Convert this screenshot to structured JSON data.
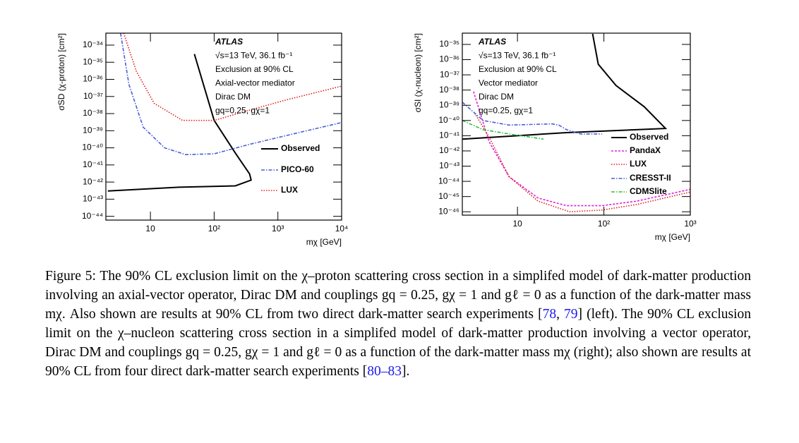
{
  "chart_data": [
    {
      "type": "line",
      "log_x": true,
      "log_y": true,
      "annotations": [
        "ATLAS",
        "√s=13 TeV, 36.1 fb⁻¹",
        "Exclusion at 90% CL",
        "Axial-vector mediator",
        "Dirac DM",
        "gq=0.25, gχ=1"
      ],
      "xlabel": "mχ [GeV]",
      "ylabel": "σSD (χ-proton) [cm²]",
      "xlim": [
        2,
        10000
      ],
      "ylim": [
        6e-45,
        5e-34
      ],
      "xticks": [
        10,
        {
          "value": 100,
          "label": "10²"
        },
        {
          "value": 1000,
          "label": "10³"
        },
        {
          "value": 10000,
          "label": "10⁴"
        }
      ],
      "yticks": [
        {
          "value": 1e-34,
          "label": "10⁻³⁴"
        },
        {
          "value": 1e-35,
          "label": "10⁻³⁵"
        },
        {
          "value": 1e-36,
          "label": "10⁻³⁶"
        },
        {
          "value": 1e-37,
          "label": "10⁻³⁷"
        },
        {
          "value": 1e-38,
          "label": "10⁻³⁸"
        },
        {
          "value": 1e-39,
          "label": "10⁻³⁹"
        },
        {
          "value": 1e-40,
          "label": "10⁻⁴⁰"
        },
        {
          "value": 1e-41,
          "label": "10⁻⁴¹"
        },
        {
          "value": 1e-42,
          "label": "10⁻⁴²"
        },
        {
          "value": 1e-43,
          "label": "10⁻⁴³"
        },
        {
          "value": 1e-44,
          "label": "10⁻⁴⁴"
        }
      ],
      "legend": "center right",
      "series": [
        {
          "name": "Observed",
          "color": "#000000",
          "linestyle": "solid",
          "x": [
            49,
            100,
            215,
            360,
            380,
            215,
            28,
            2.15
          ],
          "values": [
            3e-35,
            4e-39,
            5e-41,
            3e-42,
            1.3e-42,
            6e-43,
            5e-43,
            3e-43
          ]
        },
        {
          "name": "PICO-60",
          "color": "#4a5fd6",
          "linestyle": "dashdot",
          "x": [
            3.4,
            4.6,
            7.7,
            16.7,
            36,
            100,
            360,
            1290,
            10000
          ],
          "values": [
            5e-34,
            5e-37,
            1.6e-39,
            1e-40,
            4e-41,
            4.5e-41,
            1.6e-40,
            5e-40,
            3e-39
          ]
        },
        {
          "name": "LUX",
          "color": "#e02020",
          "linestyle": "dotted",
          "x": [
            3.8,
            6,
            11.4,
            32,
            100,
            360,
            1290,
            10000
          ],
          "values": [
            5e-34,
            3e-36,
            4e-38,
            4e-39,
            4e-39,
            1.6e-38,
            6e-38,
            4e-37
          ]
        }
      ]
    },
    {
      "type": "line",
      "log_x": true,
      "log_y": true,
      "annotations": [
        "ATLAS",
        "√s=13 TeV, 36.1 fb⁻¹",
        "Exclusion at 90% CL",
        "Vector mediator",
        "Dirac DM",
        "gq=0.25, gχ=1"
      ],
      "xlabel": "mχ [GeV]",
      "ylabel": "σSI (χ-nucleon) [cm²]",
      "xlim": [
        2.3,
        1000
      ],
      "ylim": [
        6e-47,
        5.5e-35
      ],
      "xticks": [
        10,
        {
          "value": 100,
          "label": "10²"
        },
        {
          "value": 1000,
          "label": "10³"
        }
      ],
      "yticks": [
        {
          "value": 1e-35,
          "label": "10⁻³⁵"
        },
        {
          "value": 1e-36,
          "label": "10⁻³⁶"
        },
        {
          "value": 1e-37,
          "label": "10⁻³⁷"
        },
        {
          "value": 1e-38,
          "label": "10⁻³⁸"
        },
        {
          "value": 1e-39,
          "label": "10⁻³⁹"
        },
        {
          "value": 1e-40,
          "label": "10⁻⁴⁰"
        },
        {
          "value": 1e-41,
          "label": "10⁻⁴¹"
        },
        {
          "value": 1e-42,
          "label": "10⁻⁴²"
        },
        {
          "value": 1e-43,
          "label": "10⁻⁴³"
        },
        {
          "value": 1e-44,
          "label": "10⁻⁴⁴"
        },
        {
          "value": 1e-45,
          "label": "10⁻⁴⁵"
        },
        {
          "value": 1e-46,
          "label": "10⁻⁴⁶"
        }
      ],
      "legend": "lower right",
      "series": [
        {
          "name": "Observed",
          "color": "#000000",
          "linestyle": "solid",
          "x": [
            74,
            86,
            138,
            293,
            517,
            37,
            2.3
          ],
          "values": [
            5e-35,
            5e-37,
            2e-38,
            8e-40,
            3e-41,
            1.6e-41,
            6e-42
          ]
        },
        {
          "name": "PandaX",
          "color": "#e020e0",
          "linestyle": "dashed",
          "x": [
            3.1,
            4.7,
            8,
            17.3,
            37,
            95,
            240,
            1000
          ],
          "values": [
            8e-39,
            4e-42,
            2e-44,
            8e-46,
            2.5e-46,
            2.5e-46,
            5e-46,
            3e-45
          ]
        },
        {
          "name": "LUX",
          "color": "#e02020",
          "linestyle": "dotted",
          "x": [
            3.2,
            4.7,
            8,
            17.3,
            40,
            95,
            240,
            1000
          ],
          "values": [
            3e-40,
            8e-42,
            2e-44,
            5e-46,
            1e-46,
            1.3e-46,
            3e-46,
            2e-45
          ]
        },
        {
          "name": "CRESST-II",
          "color": "#4a5fd6",
          "linestyle": "dashdot",
          "x": [
            2.3,
            4,
            8,
            25,
            30,
            37,
            54,
            95
          ],
          "values": [
            1.6e-39,
            1e-40,
            5e-41,
            6e-41,
            5e-41,
            2.5e-41,
            1.3e-41,
            1.3e-41
          ]
        },
        {
          "name": "CDMSlite",
          "color": "#30c040",
          "linestyle": "dashdot",
          "x": [
            2.3,
            4,
            8,
            20
          ],
          "values": [
            1e-40,
            2.5e-41,
            1.3e-41,
            6e-42
          ]
        }
      ]
    }
  ],
  "caption": {
    "parts": [
      "Figure 5: The 90% CL exclusion limit on the χ–proton scattering cross section in a simplifed model of dark-matter production involving an axial-vector operator, Dirac DM and couplings gq = 0.25, gχ = 1 and gℓ = 0 as a function of the dark-matter mass mχ. Also shown are results at 90% CL from two direct dark-matter search experiments [",
      "78",
      ", ",
      "79",
      "] (left). The 90% CL exclusion limit on the χ–nucleon scattering cross section in a simplifed model of dark-matter production involving a vector operator, Dirac DM and couplings gq = 0.25, gχ = 1 and gℓ = 0 as a function of the dark-matter mass mχ (right); also shown are results at 90% CL from four direct dark-matter search experiments [",
      "80",
      "–",
      "83",
      "]."
    ]
  }
}
